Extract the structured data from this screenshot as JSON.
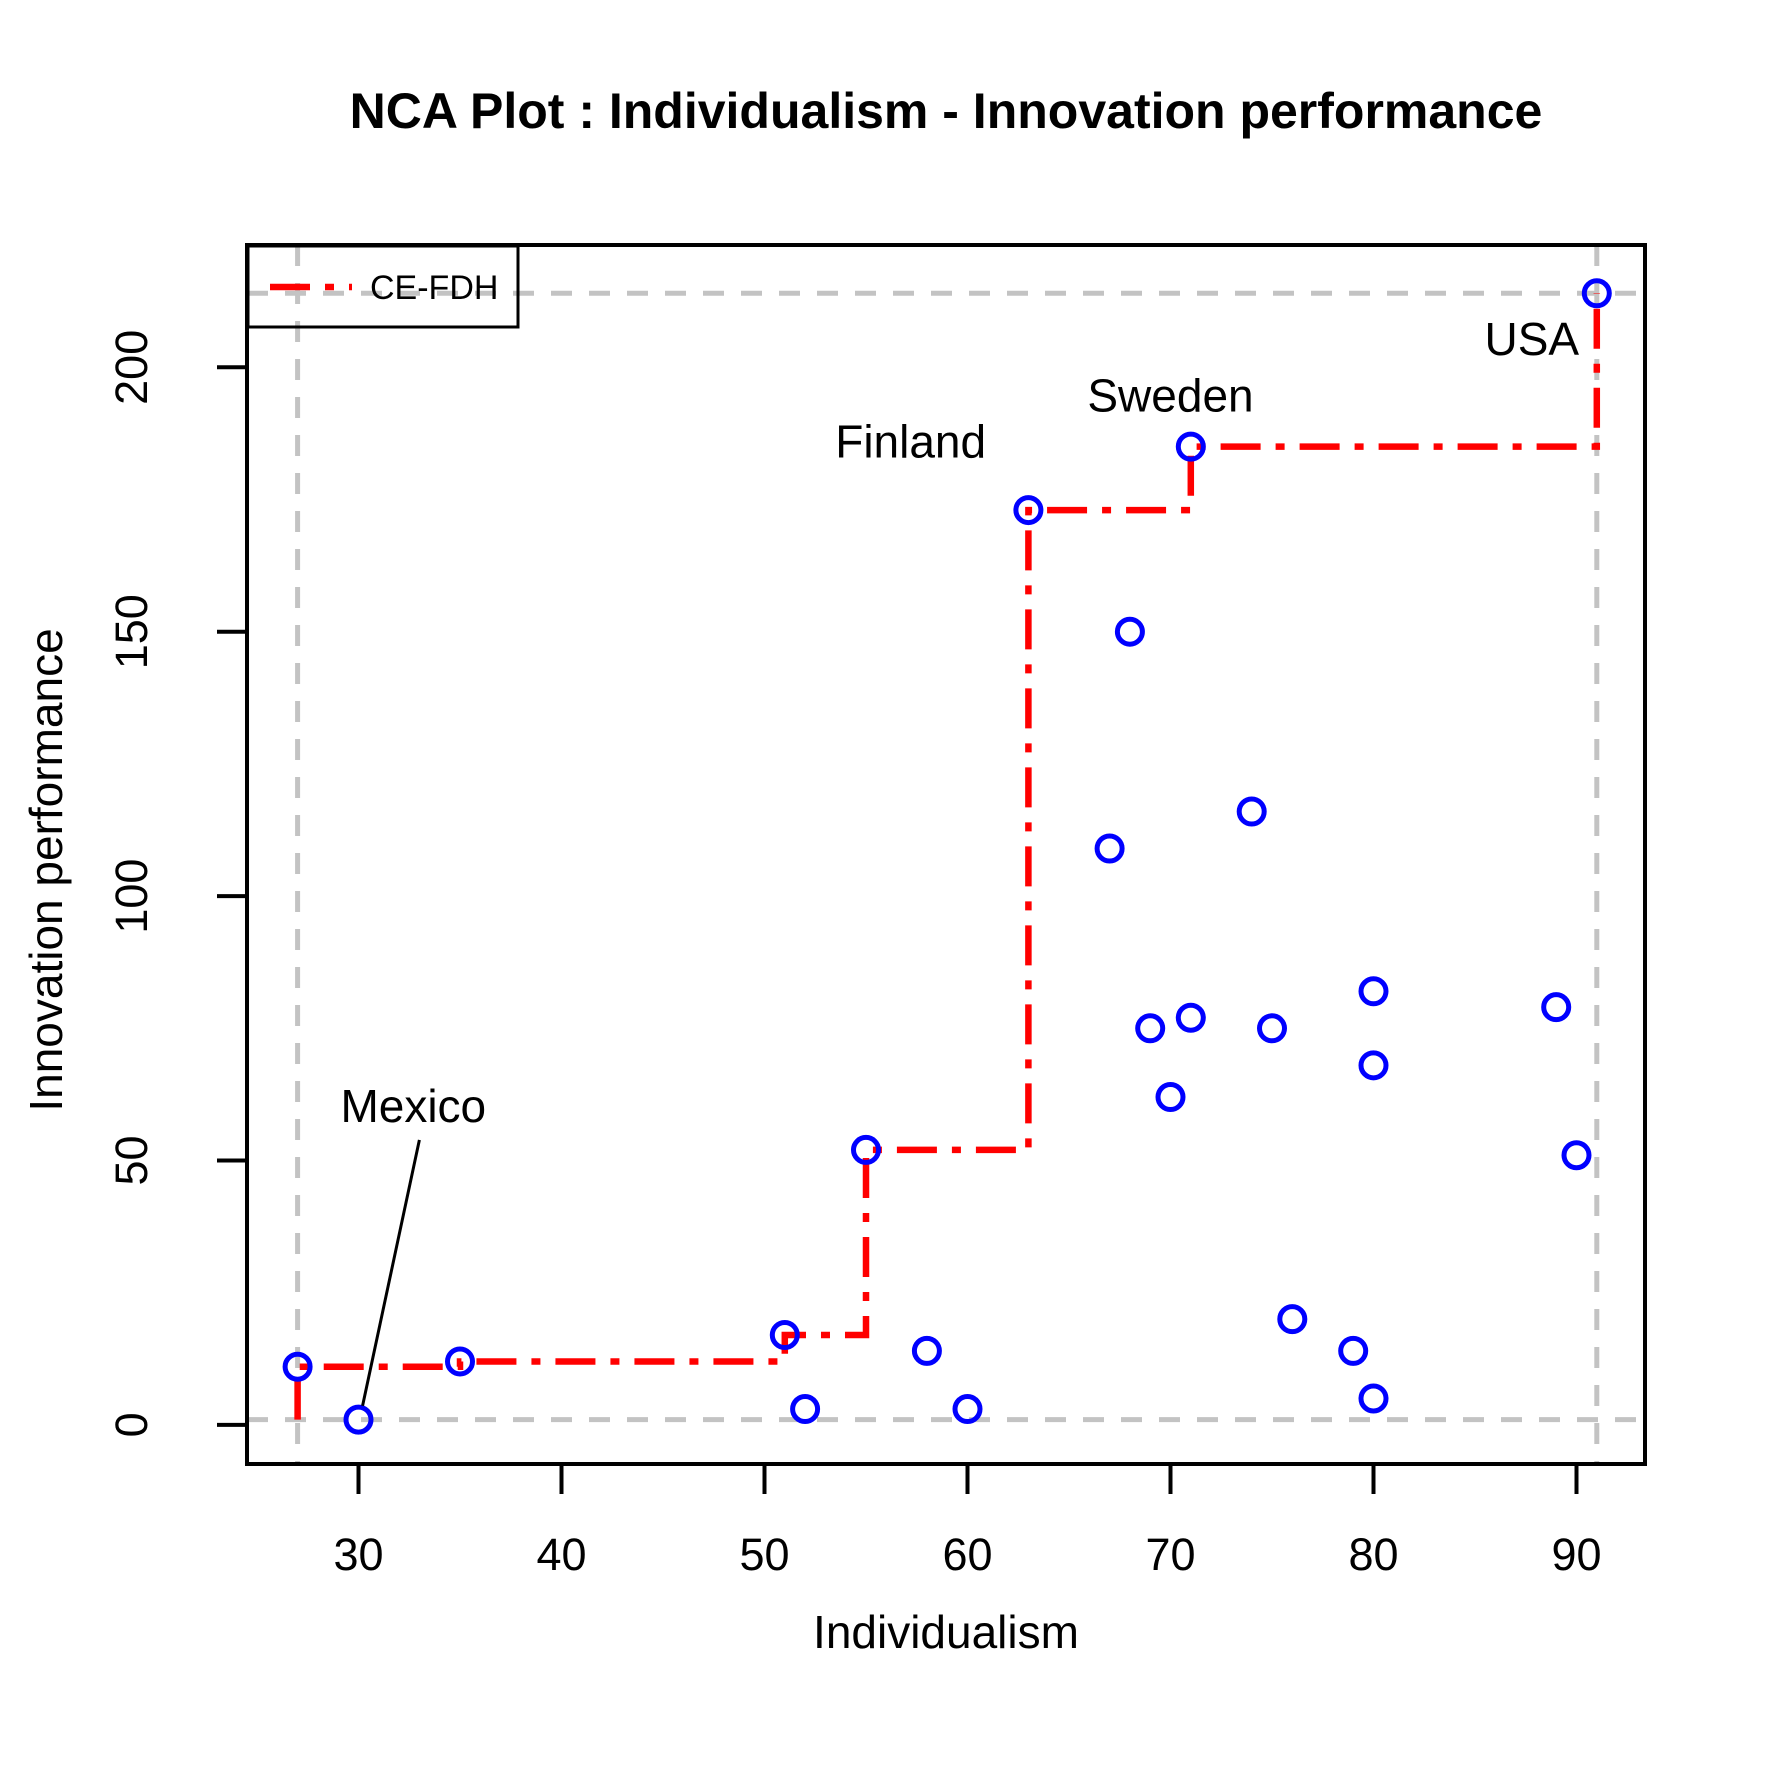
{
  "page": {
    "background": "#FFFFFF"
  },
  "chart_data": {
    "type": "scatter",
    "title": "NCA Plot : Individualism - Innovation performance",
    "xlabel": "Individualism",
    "ylabel": "Innovation performance",
    "x_ticks": [
      30,
      40,
      50,
      60,
      70,
      80,
      90
    ],
    "y_ticks": [
      0,
      50,
      100,
      150,
      200
    ],
    "xlim": [
      24.5,
      93.4
    ],
    "ylim": [
      -7.5,
      223
    ],
    "grid": false,
    "point_color": "#0000FF",
    "ceiling_color": "#FF0000",
    "scope_line_color": "#C3C3C3",
    "border_color": "#000000",
    "legend": {
      "position": "topleft",
      "entries": [
        {
          "label": "CE-FDH",
          "color": "#FF0000",
          "line_style": "dotdash"
        }
      ]
    },
    "points": [
      [
        27,
        11
      ],
      [
        30,
        1
      ],
      [
        35,
        12
      ],
      [
        51,
        17
      ],
      [
        52,
        3
      ],
      [
        55,
        52
      ],
      [
        58,
        14
      ],
      [
        60,
        3
      ],
      [
        63,
        173
      ],
      [
        67,
        109
      ],
      [
        68,
        150
      ],
      [
        69,
        75
      ],
      [
        70,
        62
      ],
      [
        71,
        77
      ],
      [
        71,
        185
      ],
      [
        74,
        116
      ],
      [
        75,
        75
      ],
      [
        76,
        20
      ],
      [
        79,
        14
      ],
      [
        80,
        82
      ],
      [
        80,
        68
      ],
      [
        80,
        5
      ],
      [
        89,
        79
      ],
      [
        90,
        51
      ],
      [
        91,
        214
      ]
    ],
    "ceiling_points": [
      [
        27,
        1
      ],
      [
        27,
        11
      ],
      [
        35,
        12
      ],
      [
        51,
        17
      ],
      [
        55,
        52
      ],
      [
        63,
        173
      ],
      [
        71,
        185
      ],
      [
        91,
        214
      ]
    ],
    "scope": {
      "x_min": 27,
      "x_max": 91,
      "y_min": 1,
      "y_max": 214
    },
    "annotations": [
      {
        "label": "Mexico",
        "point": [
          30,
          1
        ],
        "label_x": 32.7,
        "label_y": 57.3,
        "leader": {
          "x1": 33.0,
          "y1": 53.9,
          "x2": 30.2,
          "y2": 3.6
        }
      },
      {
        "label": "Finland",
        "point": [
          63,
          173
        ],
        "label_x": 57.2,
        "label_y": 182.9
      },
      {
        "label": "Sweden",
        "point": [
          71,
          185
        ],
        "label_x": 70.0,
        "label_y": 191.6
      },
      {
        "label": "USA",
        "point": [
          91,
          214
        ],
        "label_x": 87.8,
        "label_y": 202.3
      }
    ]
  }
}
